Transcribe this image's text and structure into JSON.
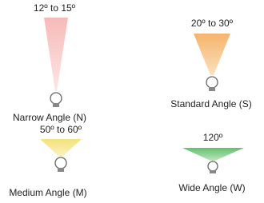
{
  "beams": [
    {
      "angle": "12º to 15º",
      "label": "Narrow Angle (N)"
    },
    {
      "angle": "20º to 30º",
      "label": "Standard Angle (S)"
    },
    {
      "angle": "50º to 60º",
      "label": "Medium Angle (M)"
    },
    {
      "angle": "120º",
      "label": "Wide Angle (W)"
    }
  ]
}
